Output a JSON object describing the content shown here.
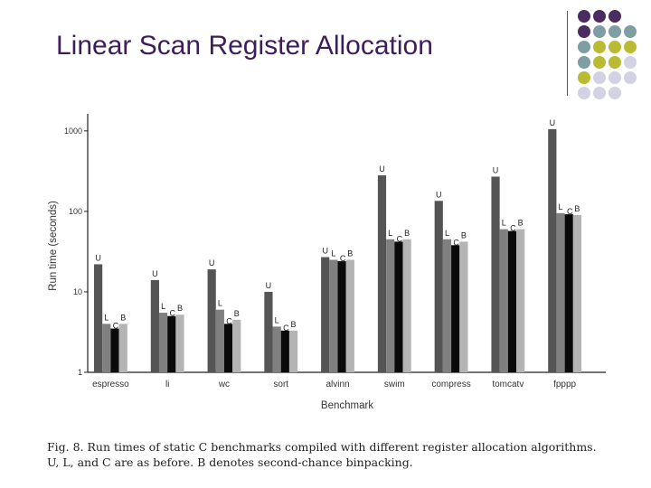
{
  "slide": {
    "title": "Linear Scan Register Allocation",
    "caption_line1": "Fig. 8.  Run times of static C benchmarks compiled with different register allocation algorithms.",
    "caption_line2": "U, L, and C are as before. B denotes second-chance binpacking."
  },
  "decoration": {
    "dot_colors": {
      "purple": "#4b2c5e",
      "teal": "#7e9ea3",
      "olive": "#b9bb35",
      "lavender": "#d2d2e2"
    },
    "dot_rows": [
      [
        "purple",
        "purple",
        "purple"
      ],
      [
        "purple",
        "teal",
        "teal",
        "teal"
      ],
      [
        "teal",
        "olive",
        "olive",
        "olive"
      ],
      [
        "teal",
        "olive",
        "olive",
        "lavender"
      ],
      [
        "olive",
        "lavender",
        "lavender",
        "lavender"
      ],
      [
        "lavender",
        "lavender",
        "lavender"
      ]
    ]
  },
  "chart_data": {
    "type": "bar",
    "title": "",
    "xlabel": "Benchmark",
    "ylabel": "Run time (seconds)",
    "y_scale": "log",
    "ylim": [
      1,
      2000
    ],
    "yticks": [
      {
        "value": 1,
        "label": "1"
      },
      {
        "value": 10,
        "label": "10"
      },
      {
        "value": 100,
        "label": "100"
      },
      {
        "value": 1000,
        "label": "1000"
      }
    ],
    "grid": false,
    "legend": "none",
    "categories": [
      "espresso",
      "li",
      "wc",
      "sort",
      "alvinn",
      "swim",
      "compress",
      "tomcatv",
      "fpppp"
    ],
    "series": [
      {
        "name": "U",
        "color": "#555555",
        "values": [
          22,
          14,
          19,
          10,
          27,
          280,
          135,
          270,
          1050
        ]
      },
      {
        "name": "L",
        "color": "#808080",
        "values": [
          4,
          5.5,
          6,
          3.7,
          25,
          45,
          45,
          60,
          95
        ]
      },
      {
        "name": "C",
        "color": "#0a0a0a",
        "values": [
          3.5,
          5,
          4,
          3.3,
          24,
          42,
          38,
          57,
          92
        ]
      },
      {
        "name": "B",
        "color": "#b4b4b4",
        "values": [
          4,
          5.2,
          4.5,
          3.3,
          25,
          45,
          42,
          60,
          90
        ]
      }
    ]
  }
}
